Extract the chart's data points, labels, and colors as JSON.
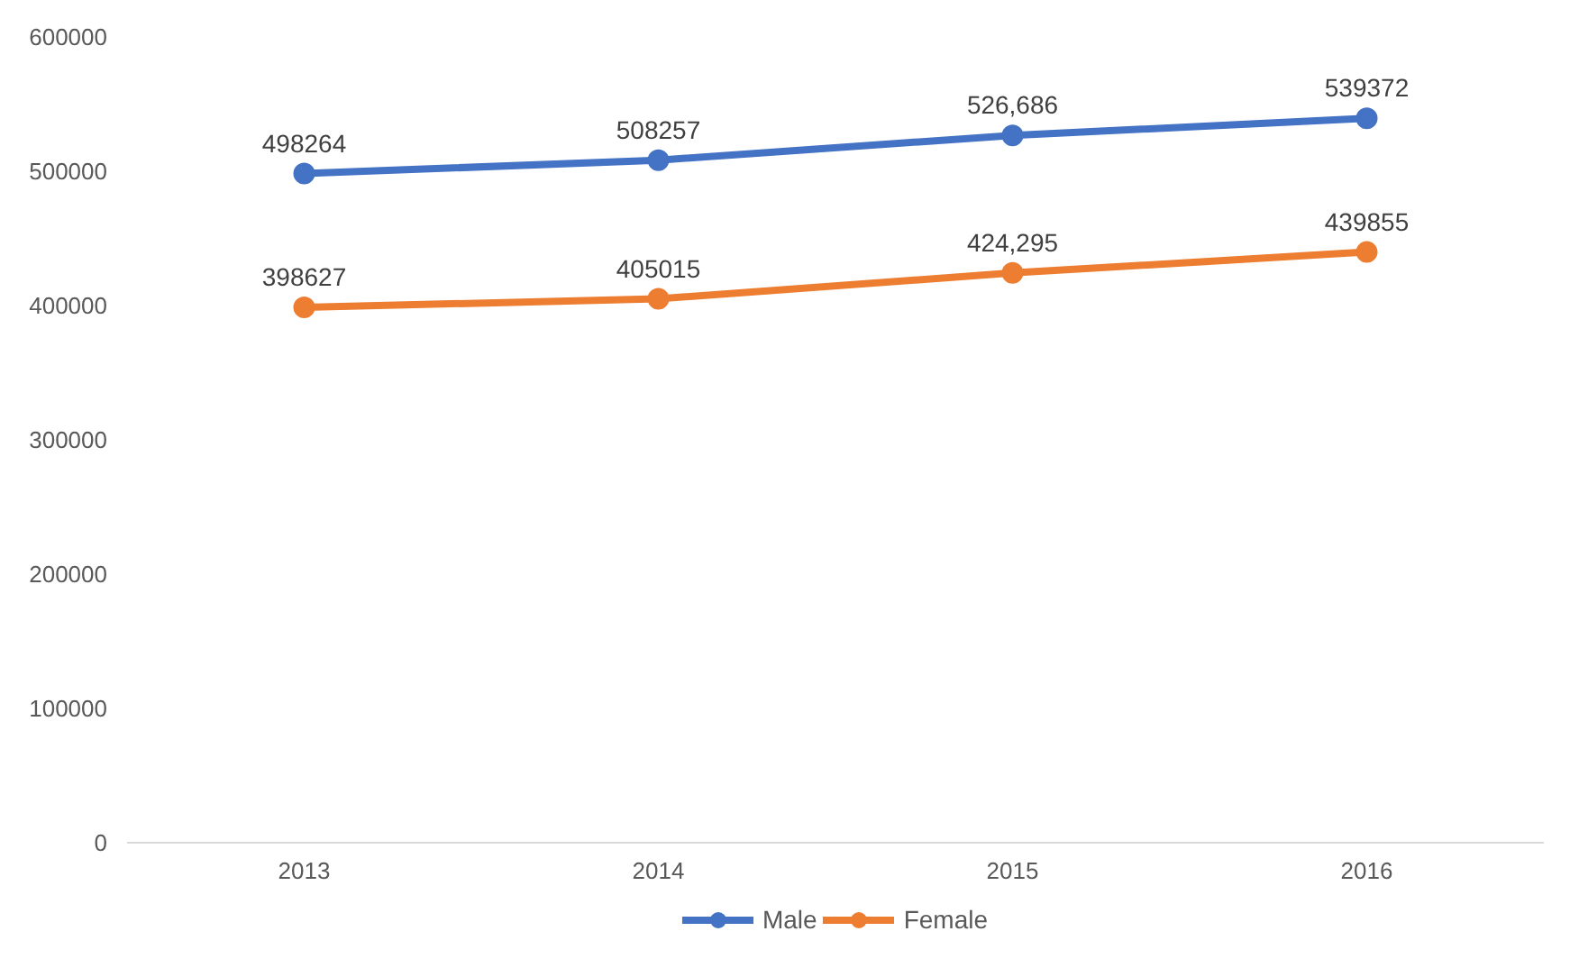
{
  "chart_data": {
    "type": "line",
    "categories": [
      "2013",
      "2014",
      "2015",
      "2016"
    ],
    "series": [
      {
        "name": "Male",
        "color": "#4472c4",
        "values": [
          498264,
          508257,
          526686,
          539372
        ],
        "value_labels": [
          "498264",
          "508257",
          "526,686",
          "539372"
        ]
      },
      {
        "name": "Female",
        "color": "#ed7d31",
        "values": [
          398627,
          405015,
          424295,
          439855
        ],
        "value_labels": [
          "398627",
          "405015",
          "424,295",
          "439855"
        ]
      }
    ],
    "ylim": [
      0,
      600000
    ],
    "yticks": [
      0,
      100000,
      200000,
      300000,
      400000,
      500000,
      600000
    ],
    "grid": false,
    "legend": "bottom",
    "marker": "circle",
    "line_style": "solid"
  }
}
